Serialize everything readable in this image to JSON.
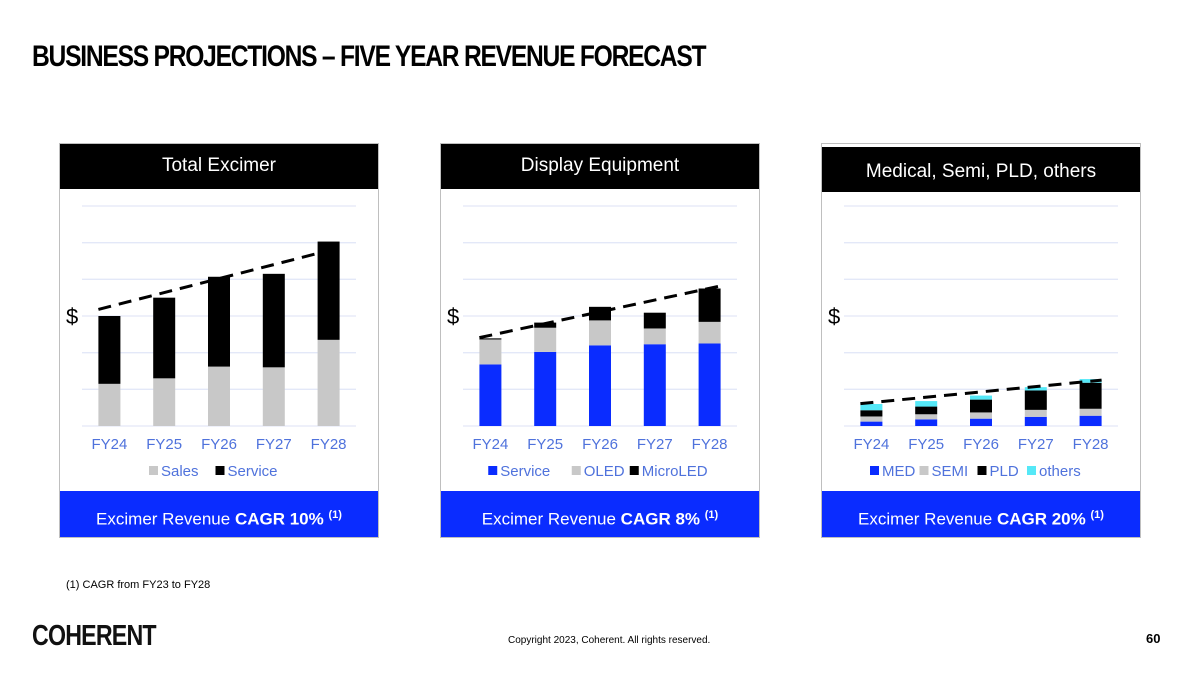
{
  "title": "BUSINESS PROJECTIONS – FIVE YEAR REVENUE FORECAST",
  "footnote": "(1) CAGR from FY23 to FY28",
  "logo_text": "COHERENT",
  "copyright": "Copyright 2023, Coherent. All rights reserved.",
  "page_number": "60",
  "colors": {
    "blue": "#0a2cff",
    "grey": "#c8c8c8",
    "black": "#000000",
    "cyan": "#55e8f7",
    "axis_text": "#4f72dc",
    "grid": "#e3e8f8"
  },
  "panels": [
    {
      "header": "Total Excimer",
      "footer_prefix": "Excimer Revenue ",
      "footer_bold": "CAGR 10%",
      "footer_note": "(1)"
    },
    {
      "header": "Display Equipment",
      "footer_prefix": "Excimer Revenue ",
      "footer_bold": "CAGR 8%",
      "footer_note": "(1)"
    },
    {
      "header": "Medical, Semi, PLD, others",
      "footer_prefix": "Excimer Revenue ",
      "footer_bold": "CAGR 20%",
      "footer_note": "(1)"
    }
  ],
  "chart_data": [
    {
      "type": "bar",
      "stacked": true,
      "title": "Total Excimer",
      "ylabel": "$",
      "categories": [
        "FY24",
        "FY25",
        "FY26",
        "FY27",
        "FY28"
      ],
      "ylim": [
        0,
        6
      ],
      "grid": true,
      "legend": "bottom",
      "series": [
        {
          "name": "Sales",
          "color": "#c8c8c8",
          "values": [
            1.15,
            1.3,
            1.62,
            1.6,
            2.35
          ]
        },
        {
          "name": "Service",
          "color": "#000000",
          "values": [
            1.85,
            2.2,
            2.45,
            2.55,
            2.68
          ]
        }
      ],
      "trend": {
        "style": "dashed",
        "from": 3.18,
        "to": 4.86
      }
    },
    {
      "type": "bar",
      "stacked": true,
      "title": "Display Equipment",
      "ylabel": "$",
      "categories": [
        "FY24",
        "FY25",
        "FY26",
        "FY27",
        "FY28"
      ],
      "ylim": [
        0,
        6
      ],
      "grid": true,
      "legend": "bottom",
      "series": [
        {
          "name": "Service",
          "color": "#0a2cff",
          "values": [
            1.68,
            2.02,
            2.2,
            2.23,
            2.25
          ]
        },
        {
          "name": "OLED",
          "color": "#c8c8c8",
          "values": [
            0.68,
            0.66,
            0.68,
            0.43,
            0.59
          ]
        },
        {
          "name": "MicroLED",
          "color": "#000000",
          "values": [
            0.03,
            0.14,
            0.37,
            0.43,
            0.91
          ]
        }
      ],
      "trend": {
        "style": "dashed",
        "from": 2.41,
        "to": 3.82
      }
    },
    {
      "type": "bar",
      "stacked": true,
      "title": "Medical, Semi, PLD, others",
      "ylabel": "$",
      "categories": [
        "FY24",
        "FY25",
        "FY26",
        "FY27",
        "FY28"
      ],
      "ylim": [
        0,
        6
      ],
      "grid": true,
      "legend": "bottom",
      "series": [
        {
          "name": "MED",
          "color": "#0a2cff",
          "values": [
            0.12,
            0.18,
            0.2,
            0.25,
            0.28
          ]
        },
        {
          "name": "SEMI",
          "color": "#c8c8c8",
          "values": [
            0.14,
            0.14,
            0.17,
            0.19,
            0.19
          ]
        },
        {
          "name": "PLD",
          "color": "#000000",
          "values": [
            0.17,
            0.21,
            0.35,
            0.53,
            0.71
          ]
        },
        {
          "name": "others",
          "color": "#55e8f7",
          "values": [
            0.17,
            0.15,
            0.11,
            0.09,
            0.1
          ]
        }
      ],
      "trend": {
        "style": "dashed",
        "from": 0.61,
        "to": 1.25
      }
    }
  ]
}
